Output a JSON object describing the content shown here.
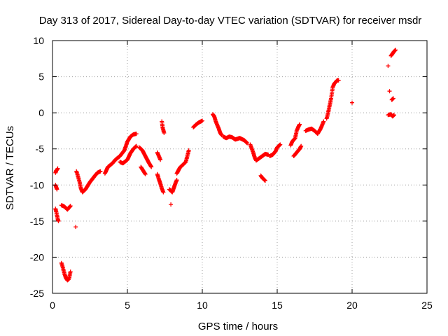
{
  "chart_data": {
    "type": "scatter",
    "title": "Day 313 of 2017, Sidereal Day-to-day VTEC variation (SDTVAR) for receiver msdr",
    "xlabel": "GPS time / hours",
    "ylabel": "SDTVAR / TECUs",
    "xlim": [
      0,
      25
    ],
    "ylim": [
      -25,
      10
    ],
    "xticks": [
      0,
      5,
      10,
      15,
      20,
      25
    ],
    "yticks": [
      -25,
      -20,
      -15,
      -10,
      -5,
      0,
      5,
      10
    ],
    "xtick_labels": [
      "0",
      "5",
      "10",
      "15",
      "20",
      "25"
    ],
    "ytick_labels": [
      "-25",
      "-20",
      "-15",
      "-10",
      "-5",
      "0",
      "5",
      "10"
    ],
    "grid": true,
    "marker": "+",
    "color": "#ff0000",
    "series": [
      {
        "name": "SDTVAR",
        "segments": [
          [
            [
              0.2,
              -8.3
            ],
            [
              0.25,
              -8.0
            ],
            [
              0.3,
              -7.9
            ],
            [
              0.35,
              -7.7
            ]
          ],
          [
            [
              0.2,
              -10.0
            ],
            [
              0.25,
              -10.3
            ],
            [
              0.3,
              -10.6
            ]
          ],
          [
            [
              0.2,
              -13.3
            ],
            [
              0.25,
              -13.7
            ],
            [
              0.3,
              -14.2
            ],
            [
              0.35,
              -14.7
            ],
            [
              0.4,
              -15.0
            ]
          ],
          [
            [
              0.6,
              -12.8
            ],
            [
              0.8,
              -13.0
            ],
            [
              1.0,
              -13.4
            ],
            [
              1.2,
              -12.9
            ]
          ],
          [
            [
              0.6,
              -20.8
            ],
            [
              0.7,
              -21.5
            ],
            [
              0.8,
              -22.3
            ],
            [
              0.9,
              -22.9
            ],
            [
              1.0,
              -23.2
            ],
            [
              1.1,
              -23.0
            ],
            [
              1.15,
              -22.5
            ],
            [
              1.2,
              -22.0
            ]
          ],
          [
            [
              1.6,
              -8.1
            ],
            [
              1.8,
              -9.5
            ],
            [
              1.9,
              -10.5
            ],
            [
              2.0,
              -11.0
            ],
            [
              2.2,
              -10.6
            ],
            [
              2.5,
              -9.6
            ],
            [
              2.8,
              -8.8
            ],
            [
              3.0,
              -8.3
            ],
            [
              3.2,
              -8.1
            ]
          ],
          [
            [
              1.55,
              -15.8
            ]
          ],
          [
            [
              3.5,
              -8.4
            ],
            [
              3.7,
              -7.5
            ],
            [
              4.0,
              -7.0
            ],
            [
              4.2,
              -6.5
            ],
            [
              4.5,
              -6.0
            ],
            [
              4.8,
              -5.2
            ],
            [
              5.0,
              -4.0
            ],
            [
              5.2,
              -3.3
            ],
            [
              5.4,
              -3.0
            ],
            [
              5.6,
              -2.9
            ]
          ],
          [
            [
              4.5,
              -6.8
            ],
            [
              4.7,
              -7.0
            ],
            [
              5.0,
              -6.5
            ],
            [
              5.2,
              -5.6
            ],
            [
              5.4,
              -5.0
            ],
            [
              5.6,
              -4.6
            ]
          ],
          [
            [
              5.8,
              -4.8
            ],
            [
              6.0,
              -5.2
            ],
            [
              6.2,
              -6.0
            ],
            [
              6.4,
              -6.8
            ],
            [
              6.6,
              -7.5
            ]
          ],
          [
            [
              5.9,
              -7.5
            ],
            [
              6.2,
              -8.5
            ]
          ],
          [
            [
              7.0,
              -5.5
            ],
            [
              7.2,
              -6.5
            ]
          ],
          [
            [
              7.0,
              -8.5
            ],
            [
              7.1,
              -9.2
            ],
            [
              7.2,
              -9.8
            ],
            [
              7.3,
              -10.5
            ],
            [
              7.4,
              -11.0
            ]
          ],
          [
            [
              7.3,
              -1.2
            ],
            [
              7.35,
              -2.0
            ],
            [
              7.4,
              -2.4
            ],
            [
              7.45,
              -2.8
            ]
          ],
          [
            [
              7.8,
              -10.6
            ],
            [
              7.9,
              -10.8
            ],
            [
              8.0,
              -11.0
            ],
            [
              8.1,
              -10.4
            ],
            [
              8.2,
              -9.8
            ],
            [
              8.3,
              -9.3
            ]
          ],
          [
            [
              7.9,
              -12.7
            ]
          ],
          [
            [
              8.3,
              -8.4
            ],
            [
              8.5,
              -7.6
            ],
            [
              8.7,
              -7.2
            ],
            [
              8.9,
              -6.8
            ],
            [
              9.0,
              -6.0
            ],
            [
              9.1,
              -5.2
            ]
          ],
          [
            [
              9.4,
              -2.0
            ],
            [
              9.6,
              -1.6
            ],
            [
              9.8,
              -1.3
            ],
            [
              10.0,
              -1.1
            ]
          ],
          [
            [
              10.7,
              -0.2
            ],
            [
              10.8,
              -0.5
            ],
            [
              10.9,
              -1.2
            ],
            [
              11.0,
              -1.7
            ],
            [
              11.1,
              -2.2
            ],
            [
              11.2,
              -2.8
            ],
            [
              11.3,
              -3.1
            ]
          ],
          [
            [
              11.4,
              -3.3
            ],
            [
              11.6,
              -3.5
            ],
            [
              11.8,
              -3.3
            ],
            [
              12.0,
              -3.4
            ],
            [
              12.2,
              -3.7
            ],
            [
              12.5,
              -3.5
            ],
            [
              12.8,
              -3.8
            ],
            [
              13.0,
              -4.2
            ]
          ],
          [
            [
              13.2,
              -4.4
            ],
            [
              13.4,
              -5.5
            ],
            [
              13.5,
              -6.2
            ],
            [
              13.6,
              -6.6
            ],
            [
              13.8,
              -6.3
            ],
            [
              14.0,
              -6.0
            ],
            [
              14.2,
              -5.7
            ],
            [
              14.4,
              -5.8
            ]
          ],
          [
            [
              13.9,
              -8.7
            ],
            [
              14.0,
              -9.0
            ],
            [
              14.1,
              -9.2
            ],
            [
              14.2,
              -9.4
            ]
          ],
          [
            [
              14.5,
              -6.0
            ],
            [
              14.7,
              -5.8
            ],
            [
              14.9,
              -5.3
            ],
            [
              15.0,
              -4.8
            ],
            [
              15.2,
              -4.4
            ]
          ],
          [
            [
              15.9,
              -4.5
            ],
            [
              16.0,
              -4.0
            ],
            [
              16.2,
              -3.5
            ],
            [
              16.3,
              -2.5
            ],
            [
              16.4,
              -2.0
            ],
            [
              16.5,
              -1.6
            ]
          ],
          [
            [
              16.1,
              -6.0
            ],
            [
              16.3,
              -5.5
            ],
            [
              16.5,
              -5.0
            ],
            [
              16.6,
              -4.6
            ]
          ],
          [
            [
              16.9,
              -2.5
            ],
            [
              17.1,
              -2.3
            ],
            [
              17.3,
              -2.2
            ],
            [
              17.5,
              -2.5
            ],
            [
              17.7,
              -2.9
            ],
            [
              17.9,
              -2.2
            ],
            [
              18.0,
              -1.7
            ],
            [
              18.1,
              -1.2
            ]
          ],
          [
            [
              18.3,
              -0.8
            ],
            [
              18.4,
              0.0
            ],
            [
              18.5,
              1.0
            ],
            [
              18.6,
              2.0
            ],
            [
              18.7,
              3.5
            ],
            [
              18.8,
              4.0
            ],
            [
              19.0,
              4.5
            ],
            [
              19.1,
              4.5
            ]
          ],
          [
            [
              20.0,
              1.4
            ]
          ],
          [
            [
              22.4,
              6.5
            ]
          ],
          [
            [
              22.5,
              3.0
            ]
          ],
          [
            [
              22.4,
              -0.3
            ],
            [
              22.6,
              -0.2
            ],
            [
              22.7,
              -0.5
            ],
            [
              22.8,
              -0.3
            ]
          ],
          [
            [
              22.65,
              1.8
            ],
            [
              22.75,
              2.0
            ]
          ],
          [
            [
              22.6,
              7.9
            ],
            [
              22.7,
              8.2
            ],
            [
              22.8,
              8.5
            ],
            [
              22.9,
              8.7
            ]
          ]
        ]
      }
    ]
  }
}
